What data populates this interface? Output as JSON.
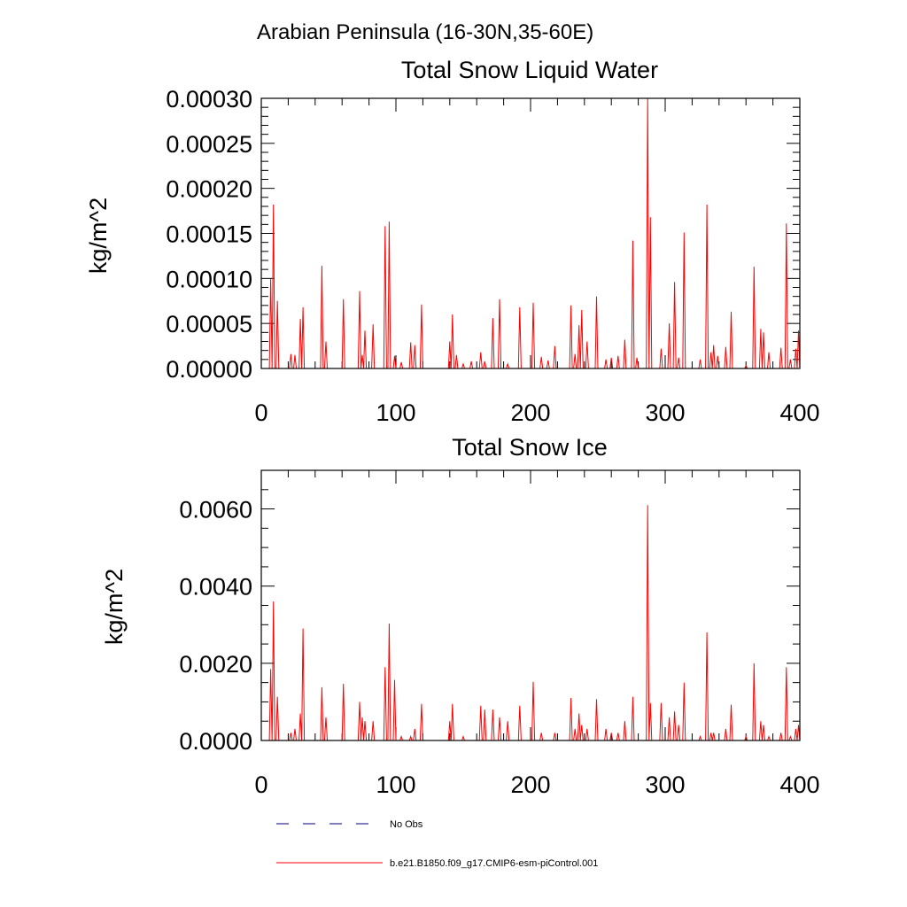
{
  "page": {
    "super_title": "Arabian Peninsula (16-30N,35-60E)"
  },
  "legend": {
    "position": "bottom",
    "items": [
      {
        "label": "No Obs",
        "style": "dashed",
        "color": "#000080"
      },
      {
        "label": "b.e21.B1850.f09_g17.CMIP6-esm-piControl.001",
        "style": "solid",
        "color": "#ff0000"
      }
    ]
  },
  "chart_data": [
    {
      "type": "line",
      "title": "Total Snow Liquid Water",
      "ylabel": "kg/m^2",
      "xlabel": "",
      "xlim": [
        0,
        400
      ],
      "ylim": [
        0,
        0.0003
      ],
      "xticks": [
        "0",
        "100",
        "200",
        "300",
        "400"
      ],
      "yticks": [
        "0.00000",
        "0.00005",
        "0.00010",
        "0.00015",
        "0.00020",
        "0.00025",
        "0.00030"
      ],
      "grid": false,
      "series": [
        {
          "color": "#ff0000",
          "peaks": [
            [
              7,
              0.0001
            ],
            [
              9,
              0.000182
            ],
            [
              12,
              7.5e-05
            ],
            [
              22,
              1.6e-05
            ],
            [
              25,
              1.5e-05
            ],
            [
              29,
              5.5e-05
            ],
            [
              31,
              6.8e-05
            ],
            [
              45,
              0.000114
            ],
            [
              48,
              3e-05
            ],
            [
              61,
              7.7e-05
            ],
            [
              73,
              8.6e-05
            ],
            [
              75,
              1.5e-05
            ],
            [
              77,
              4.2e-05
            ],
            [
              83,
              4.9e-05
            ],
            [
              92,
              0.000158
            ],
            [
              95,
              0.000163
            ],
            [
              99,
              1.4e-05
            ],
            [
              104,
              7e-06
            ],
            [
              111,
              2.9e-05
            ],
            [
              114,
              2.6e-05
            ],
            [
              119,
              7.1e-05
            ],
            [
              140,
              3e-05
            ],
            [
              142,
              6e-05
            ],
            [
              145,
              1.5e-05
            ],
            [
              150,
              5e-06
            ],
            [
              156,
              8e-06
            ],
            [
              163,
              1.8e-05
            ],
            [
              166,
              8e-06
            ],
            [
              172,
              5.6e-05
            ],
            [
              177,
              7.7e-05
            ],
            [
              183,
              5e-06
            ],
            [
              192,
              6.8e-05
            ],
            [
              202,
              7.3e-05
            ],
            [
              208,
              1.3e-05
            ],
            [
              213,
              9e-06
            ],
            [
              218,
              2.5e-05
            ],
            [
              230,
              7e-05
            ],
            [
              233,
              1.6e-05
            ],
            [
              236,
              4.8e-05
            ],
            [
              238,
              6.5e-05
            ],
            [
              242,
              3e-05
            ],
            [
              249,
              8e-05
            ],
            [
              256,
              1e-05
            ],
            [
              260,
              1.2e-05
            ],
            [
              265,
              1.4e-05
            ],
            [
              270,
              3.2e-05
            ],
            [
              276,
              0.000142
            ],
            [
              279,
              1.2e-05
            ],
            [
              287,
              0.0003
            ],
            [
              289,
              0.000168
            ],
            [
              297,
              2.2e-05
            ],
            [
              303,
              5e-05
            ],
            [
              307,
              9.6e-05
            ],
            [
              310,
              1.2e-05
            ],
            [
              314,
              0.000151
            ],
            [
              326,
              1e-05
            ],
            [
              331,
              0.000182
            ],
            [
              334,
              1.8e-05
            ],
            [
              336,
              2.6e-05
            ],
            [
              339,
              1.4e-05
            ],
            [
              345,
              2.4e-05
            ],
            [
              349,
              6.3e-05
            ],
            [
              360,
              3e-06
            ],
            [
              366,
              0.000113
            ],
            [
              371,
              4.4e-05
            ],
            [
              373,
              4e-05
            ],
            [
              377,
              1.8e-05
            ],
            [
              386,
              2.3e-05
            ],
            [
              390,
              0.000161
            ],
            [
              393,
              1e-05
            ],
            [
              397,
              2.2e-05
            ],
            [
              399,
              4.2e-05
            ]
          ]
        }
      ]
    },
    {
      "type": "line",
      "title": "Total Snow Ice",
      "ylabel": "kg/m^2",
      "xlabel": "",
      "xlim": [
        0,
        400
      ],
      "ylim": [
        0,
        0.007
      ],
      "xticks": [
        "0",
        "100",
        "200",
        "300",
        "400"
      ],
      "yticks": [
        "0.0000",
        "0.0020",
        "0.0040",
        "0.0060"
      ],
      "grid": false,
      "series": [
        {
          "color": "#ff0000",
          "peaks": [
            [
              7,
              0.00185
            ],
            [
              9,
              0.0036
            ],
            [
              12,
              0.00113
            ],
            [
              22,
              0.0002
            ],
            [
              25,
              0.0003
            ],
            [
              29,
              0.0007
            ],
            [
              31,
              0.0029
            ],
            [
              45,
              0.00138
            ],
            [
              48,
              0.0006
            ],
            [
              61,
              0.00147
            ],
            [
              73,
              0.001
            ],
            [
              75,
              0.0006
            ],
            [
              77,
              0.0005
            ],
            [
              83,
              0.0005
            ],
            [
              92,
              0.0019
            ],
            [
              95,
              0.00303
            ],
            [
              99,
              0.00157
            ],
            [
              104,
              0.0001
            ],
            [
              111,
              0.0001
            ],
            [
              114,
              0.0003
            ],
            [
              119,
              0.00095
            ],
            [
              140,
              0.0005
            ],
            [
              142,
              0.00095
            ],
            [
              150,
              0.0001
            ],
            [
              163,
              0.0009
            ],
            [
              166,
              0.0008
            ],
            [
              172,
              0.0008
            ],
            [
              177,
              0.0006
            ],
            [
              183,
              0.0005
            ],
            [
              192,
              0.0009
            ],
            [
              202,
              0.00152
            ],
            [
              208,
              0.0002
            ],
            [
              218,
              0.0002
            ],
            [
              230,
              0.0011
            ],
            [
              233,
              0.0003
            ],
            [
              236,
              0.0007
            ],
            [
              238,
              0.0004
            ],
            [
              242,
              0.0003
            ],
            [
              249,
              0.00107
            ],
            [
              256,
              0.0003
            ],
            [
              260,
              0.0002
            ],
            [
              265,
              0.0002
            ],
            [
              270,
              0.0005
            ],
            [
              276,
              0.00113
            ],
            [
              287,
              0.0061
            ],
            [
              289,
              0.00097
            ],
            [
              297,
              0.00097
            ],
            [
              303,
              0.0006
            ],
            [
              307,
              0.00075
            ],
            [
              310,
              0.0004
            ],
            [
              314,
              0.0015
            ],
            [
              326,
              0.0001
            ],
            [
              331,
              0.0028
            ],
            [
              334,
              0.0002
            ],
            [
              336,
              0.0002
            ],
            [
              345,
              0.0003
            ],
            [
              349,
              0.00093
            ],
            [
              360,
              0.0001
            ],
            [
              366,
              0.002
            ],
            [
              371,
              0.0005
            ],
            [
              373,
              0.0004
            ],
            [
              377,
              0.0001
            ],
            [
              386,
              0.0002
            ],
            [
              390,
              0.0019
            ],
            [
              393,
              0.0001
            ],
            [
              397,
              0.0003
            ],
            [
              399,
              0.0004
            ]
          ]
        }
      ]
    }
  ]
}
